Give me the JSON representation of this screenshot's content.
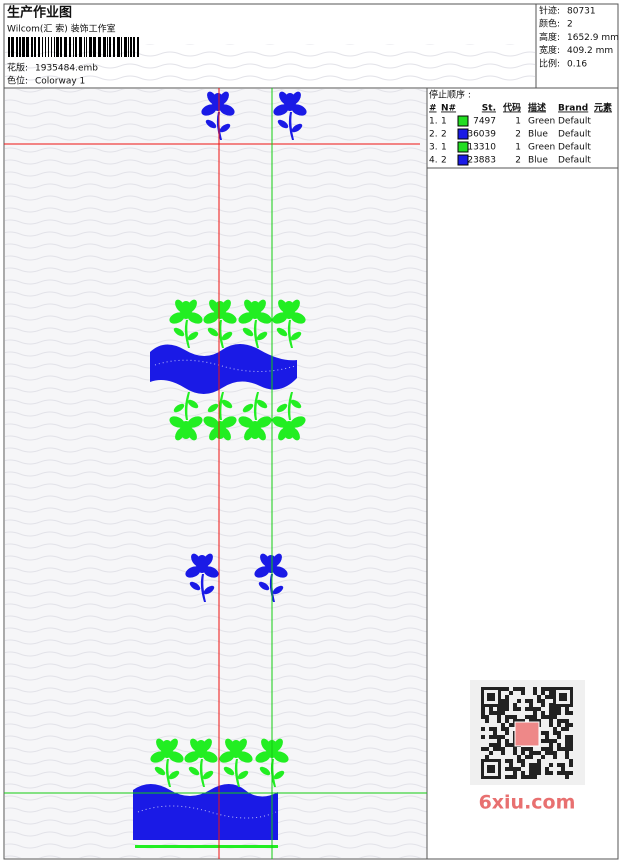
{
  "header": {
    "title": "生产作业图",
    "studio": "Wilcom(汇 索) 装饰工作室",
    "fields": [
      {
        "label": "花版:",
        "value": "1935484.emb"
      },
      {
        "label": "色位:",
        "value": "Colorway 1"
      }
    ]
  },
  "stats": [
    {
      "label": "针迹:",
      "value": "80731"
    },
    {
      "label": "颜色:",
      "value": "2"
    },
    {
      "label": "高度:",
      "value": "1652.9 mm"
    },
    {
      "label": "宽度:",
      "value": "409.2 mm"
    },
    {
      "label": "比例:",
      "value": "0.16"
    }
  ],
  "stop_sequence": {
    "title": "停止顺序 :",
    "columns": [
      "#",
      "N#",
      "St.",
      "代码",
      "描述",
      "Brand",
      "元素"
    ],
    "rows": [
      {
        "idx": "1.",
        "n": "1",
        "color": "#22dd22",
        "st": "7497",
        "code": "1",
        "desc": "Green",
        "brand": "Default"
      },
      {
        "idx": "2.",
        "n": "2",
        "color": "#1a1ae6",
        "st": "36039",
        "code": "2",
        "desc": "Blue",
        "brand": "Default"
      },
      {
        "idx": "3.",
        "n": "1",
        "color": "#22dd22",
        "st": "13310",
        "code": "1",
        "desc": "Green",
        "brand": "Default"
      },
      {
        "idx": "4.",
        "n": "2",
        "color": "#1a1ae6",
        "st": "23883",
        "code": "2",
        "desc": "Blue",
        "brand": "Default"
      }
    ]
  },
  "watermark": "6xiu.com"
}
